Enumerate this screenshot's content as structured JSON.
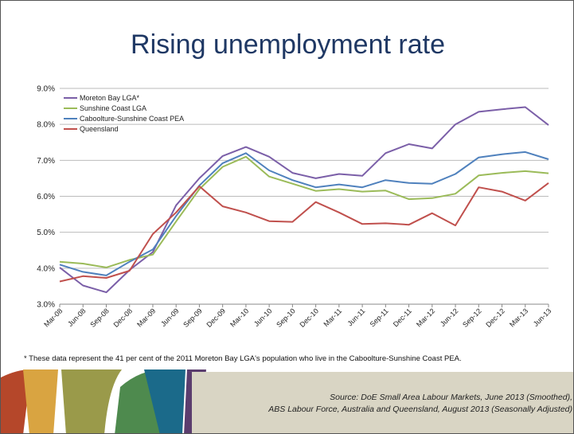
{
  "slide": {
    "title": "Rising unemployment rate",
    "footnote": "* These data represent the 41 per cent of the 2011 Moreton Bay LGA's population who live in the Caboolture-Sunshine Coast PEA.",
    "source_line1": "Source: DoE Small Area Labour Markets, June 2013 (Smoothed),",
    "source_line2": "ABS Labour Force, Australia and Queensland, August 2013 (Seasonally Adjusted)"
  },
  "decor_colors": [
    "#b5472a",
    "#d9a441",
    "#9a9a4a",
    "#4e8a4e",
    "#1b6a8a",
    "#5b3d6e"
  ],
  "chart_data": {
    "type": "line",
    "title": "",
    "xlabel": "",
    "ylabel": "",
    "x": [
      "Mar-08",
      "Jun-08",
      "Sep-08",
      "Dec-08",
      "Mar-09",
      "Jun-09",
      "Sep-09",
      "Dec-09",
      "Mar-10",
      "Jun-10",
      "Sep-10",
      "Dec-10",
      "Mar-11",
      "Jun-11",
      "Sep-11",
      "Dec-11",
      "Mar-12",
      "Jun-12",
      "Sep-12",
      "Dec-12",
      "Mar-13",
      "Jun-13"
    ],
    "ylim": [
      3.0,
      9.0
    ],
    "yticks": [
      "3.0%",
      "4.0%",
      "5.0%",
      "6.0%",
      "7.0%",
      "8.0%",
      "9.0%"
    ],
    "grid": "horizontal",
    "legend_position": "top-left",
    "series": [
      {
        "name": "Moreton Bay LGA*",
        "color": "#7b5fa8",
        "values": [
          4.02,
          3.52,
          3.33,
          3.95,
          4.45,
          5.75,
          6.5,
          7.12,
          7.37,
          7.1,
          6.65,
          6.5,
          6.62,
          6.57,
          7.2,
          7.45,
          7.33,
          8.0,
          8.35,
          8.42,
          8.48,
          7.98
        ]
      },
      {
        "name": "Sunshine Coast LGA",
        "color": "#9bbb59",
        "values": [
          4.18,
          4.13,
          4.02,
          4.23,
          4.38,
          5.3,
          6.2,
          6.82,
          7.1,
          6.55,
          6.35,
          6.15,
          6.2,
          6.13,
          6.16,
          5.92,
          5.95,
          6.07,
          6.58,
          6.65,
          6.7,
          6.64
        ]
      },
      {
        "name": "Caboolture-Sunshine Coast PEA",
        "color": "#4f81bd",
        "values": [
          4.1,
          3.9,
          3.8,
          4.18,
          4.52,
          5.45,
          6.3,
          6.92,
          7.2,
          6.72,
          6.45,
          6.25,
          6.33,
          6.25,
          6.45,
          6.37,
          6.35,
          6.62,
          7.08,
          7.17,
          7.23,
          7.03
        ]
      },
      {
        "name": "Queensland",
        "color": "#c0504d",
        "values": [
          3.63,
          3.78,
          3.73,
          3.93,
          4.95,
          5.55,
          6.28,
          5.72,
          5.55,
          5.31,
          5.29,
          5.84,
          5.55,
          5.23,
          5.25,
          5.21,
          5.53,
          5.19,
          6.25,
          6.13,
          5.88,
          6.37
        ]
      }
    ]
  }
}
